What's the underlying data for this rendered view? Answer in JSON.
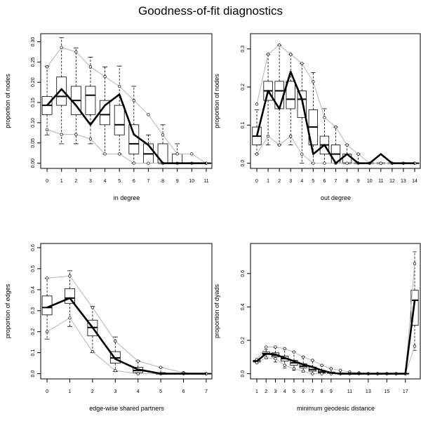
{
  "title": "Goodness-of-fit diagnostics",
  "colors": {
    "observed": "#000000",
    "bounds": "#b4b4b4",
    "box": "#000000"
  },
  "chart_data": [
    {
      "type": "box",
      "xlabel": "in degree",
      "ylabel": "proportion of nodes",
      "x": [
        0,
        1,
        2,
        3,
        4,
        5,
        6,
        7,
        8,
        9,
        10,
        11
      ],
      "x_tick_labels": [
        "0",
        "1",
        "2",
        "3",
        "4",
        "5",
        "6",
        "7",
        "8",
        "9",
        "10",
        "11"
      ],
      "ylim": [
        0,
        0.32
      ],
      "yticks": [
        0.0,
        0.05,
        0.1,
        0.15,
        0.2,
        0.25,
        0.3
      ],
      "ytick_labels": [
        "0.00",
        "0.05",
        "0.10",
        "0.15",
        "0.20",
        "0.25",
        "0.30"
      ],
      "observed": [
        0.143,
        0.183,
        0.143,
        0.095,
        0.143,
        0.17,
        0.071,
        0.045,
        0.0,
        0.0,
        0.0,
        0.0
      ],
      "box": [
        {
          "min": 0.07,
          "q1": 0.12,
          "med": 0.143,
          "q3": 0.165,
          "max": 0.24
        },
        {
          "min": 0.048,
          "q1": 0.143,
          "med": 0.165,
          "q3": 0.213,
          "max": 0.31
        },
        {
          "min": 0.048,
          "q1": 0.12,
          "med": 0.155,
          "q3": 0.19,
          "max": 0.285
        },
        {
          "min": 0.048,
          "q1": 0.12,
          "med": 0.168,
          "q3": 0.19,
          "max": 0.262
        },
        {
          "min": 0.023,
          "q1": 0.095,
          "med": 0.12,
          "q3": 0.155,
          "max": 0.238
        },
        {
          "min": 0.023,
          "q1": 0.07,
          "med": 0.095,
          "q3": 0.143,
          "max": 0.24
        },
        {
          "min": 0.0,
          "q1": 0.023,
          "med": 0.048,
          "q3": 0.095,
          "max": 0.19
        },
        {
          "min": 0.0,
          "q1": 0.0,
          "med": 0.023,
          "q3": 0.048,
          "max": 0.07
        },
        {
          "min": 0.0,
          "q1": 0.0,
          "med": 0.0,
          "q3": 0.048,
          "max": 0.095
        },
        {
          "min": 0.0,
          "q1": 0.0,
          "med": 0.0,
          "q3": 0.023,
          "max": 0.048
        },
        {
          "min": 0.0,
          "q1": 0.0,
          "med": 0.0,
          "q3": 0.0,
          "max": 0.0
        },
        {
          "min": 0.0,
          "q1": 0.0,
          "med": 0.0,
          "q3": 0.0,
          "max": 0.0
        }
      ],
      "upper": [
        0.238,
        0.286,
        0.275,
        0.238,
        0.214,
        0.19,
        0.155,
        0.12,
        0.07,
        0.023,
        0.023,
        0.0
      ],
      "lower": [
        0.083,
        0.071,
        0.071,
        0.06,
        0.023,
        0.023,
        0.0,
        0.0,
        0.0,
        0.0,
        0.0,
        0.0
      ]
    },
    {
      "type": "box",
      "xlabel": "out degree",
      "ylabel": "proportion of nodes",
      "x": [
        0,
        1,
        2,
        3,
        4,
        5,
        6,
        7,
        8,
        9,
        10,
        11,
        12,
        13,
        14
      ],
      "x_tick_labels": [
        "0",
        "1",
        "2",
        "3",
        "4",
        "5",
        "6",
        "7",
        "8",
        "9",
        "10",
        "11",
        "12",
        "13",
        "14"
      ],
      "ylim": [
        0,
        0.34
      ],
      "yticks": [
        0.0,
        0.1,
        0.2,
        0.3
      ],
      "ytick_labels": [
        "0.0",
        "0.1",
        "0.2",
        "0.3"
      ],
      "observed": [
        0.071,
        0.19,
        0.143,
        0.24,
        0.168,
        0.024,
        0.048,
        0.0,
        0.024,
        0.0,
        0.0,
        0.024,
        0.0,
        0.0,
        0.0
      ],
      "box": [
        {
          "min": 0.024,
          "q1": 0.048,
          "med": 0.071,
          "q3": 0.095,
          "max": 0.14
        },
        {
          "min": 0.048,
          "q1": 0.165,
          "med": 0.19,
          "q3": 0.215,
          "max": 0.285
        },
        {
          "min": 0.048,
          "q1": 0.143,
          "med": 0.19,
          "q3": 0.215,
          "max": 0.31
        },
        {
          "min": 0.048,
          "q1": 0.143,
          "med": 0.168,
          "q3": 0.215,
          "max": 0.285
        },
        {
          "min": 0.0,
          "q1": 0.12,
          "med": 0.168,
          "q3": 0.19,
          "max": 0.262
        },
        {
          "min": 0.0,
          "q1": 0.048,
          "med": 0.095,
          "q3": 0.14,
          "max": 0.238
        },
        {
          "min": 0.0,
          "q1": 0.024,
          "med": 0.048,
          "q3": 0.071,
          "max": 0.143
        },
        {
          "min": 0.0,
          "q1": 0.0,
          "med": 0.024,
          "q3": 0.048,
          "max": 0.095
        },
        {
          "min": 0.0,
          "q1": 0.0,
          "med": 0.0,
          "q3": 0.024,
          "max": 0.048
        },
        {
          "min": 0.0,
          "q1": 0.0,
          "med": 0.0,
          "q3": 0.0,
          "max": 0.024
        },
        {
          "min": 0.0,
          "q1": 0.0,
          "med": 0.0,
          "q3": 0.0,
          "max": 0.0
        },
        {
          "min": 0.0,
          "q1": 0.0,
          "med": 0.0,
          "q3": 0.0,
          "max": 0.0
        },
        {
          "min": 0.0,
          "q1": 0.0,
          "med": 0.0,
          "q3": 0.0,
          "max": 0.0
        },
        {
          "min": 0.0,
          "q1": 0.0,
          "med": 0.0,
          "q3": 0.0,
          "max": 0.0
        },
        {
          "min": 0.0,
          "q1": 0.0,
          "med": 0.0,
          "q3": 0.0,
          "max": 0.0
        }
      ],
      "upper": [
        0.155,
        0.286,
        0.31,
        0.286,
        0.262,
        0.214,
        0.12,
        0.095,
        0.048,
        0.024,
        0.0,
        0.0,
        0.0,
        0.0,
        0.0
      ],
      "lower": [
        0.024,
        0.071,
        0.048,
        0.071,
        0.024,
        0.0,
        0.0,
        0.0,
        0.0,
        0.0,
        0.0,
        0.0,
        0.0,
        0.0,
        0.0
      ]
    },
    {
      "type": "box",
      "xlabel": "edge-wise shared partners",
      "ylabel": "proportion of edges",
      "x": [
        0,
        1,
        2,
        3,
        4,
        5,
        6,
        7
      ],
      "x_tick_labels": [
        "0",
        "1",
        "2",
        "3",
        "4",
        "5",
        "6",
        "7"
      ],
      "ylim": [
        0,
        0.62
      ],
      "yticks": [
        0.0,
        0.1,
        0.2,
        0.3,
        0.4,
        0.5,
        0.6
      ],
      "ytick_labels": [
        "0.0",
        "0.1",
        "0.2",
        "0.3",
        "0.4",
        "0.5",
        "0.6"
      ],
      "observed": [
        0.315,
        0.36,
        0.22,
        0.07,
        0.02,
        0.0,
        0.0,
        0.0
      ],
      "box": [
        {
          "min": 0.165,
          "q1": 0.28,
          "med": 0.315,
          "q3": 0.37,
          "max": 0.455
        },
        {
          "min": 0.225,
          "q1": 0.335,
          "med": 0.36,
          "q3": 0.405,
          "max": 0.49
        },
        {
          "min": 0.1,
          "q1": 0.18,
          "med": 0.22,
          "q3": 0.255,
          "max": 0.32
        },
        {
          "min": 0.01,
          "q1": 0.05,
          "med": 0.075,
          "q3": 0.105,
          "max": 0.175
        },
        {
          "min": 0.0,
          "q1": 0.005,
          "med": 0.015,
          "q3": 0.03,
          "max": 0.06
        },
        {
          "min": 0.0,
          "q1": 0.0,
          "med": 0.0,
          "q3": 0.005,
          "max": 0.03
        },
        {
          "min": 0.0,
          "q1": 0.0,
          "med": 0.0,
          "q3": 0.0,
          "max": 0.005
        },
        {
          "min": 0.0,
          "q1": 0.0,
          "med": 0.0,
          "q3": 0.0,
          "max": 0.0
        }
      ],
      "upper": [
        0.455,
        0.465,
        0.315,
        0.155,
        0.06,
        0.03,
        0.005,
        0.0
      ],
      "lower": [
        0.2,
        0.265,
        0.105,
        0.015,
        0.0,
        0.0,
        0.0,
        0.0
      ]
    },
    {
      "type": "box",
      "xlabel": "minimum geodesic distance",
      "ylabel": "proportion of dyads",
      "x": [
        1,
        2,
        3,
        4,
        5,
        6,
        7,
        8,
        9,
        10,
        11,
        12,
        13,
        14,
        15,
        16,
        17,
        18
      ],
      "x_tick_labels": [
        "1",
        "2",
        "3",
        "4",
        "5",
        "6",
        "7",
        "8",
        "9",
        "11",
        "13",
        "15",
        "17"
      ],
      "x_tick_positions": [
        1,
        2,
        3,
        4,
        5,
        6,
        7,
        8,
        9,
        11,
        13,
        15,
        17
      ],
      "ylim": [
        0,
        0.78
      ],
      "yticks": [
        0.0,
        0.2,
        0.4,
        0.6
      ],
      "ytick_labels": [
        "0.0",
        "0.2",
        "0.4",
        "0.6"
      ],
      "observed": [
        0.075,
        0.12,
        0.115,
        0.095,
        0.075,
        0.055,
        0.04,
        0.02,
        0.005,
        0.0,
        0.0,
        0.0,
        0.0,
        0.0,
        0.0,
        0.0,
        0.0,
        0.44
      ],
      "box": [
        {
          "min": 0.065,
          "q1": 0.07,
          "med": 0.075,
          "q3": 0.08,
          "max": 0.085
        },
        {
          "min": 0.09,
          "q1": 0.115,
          "med": 0.12,
          "q3": 0.13,
          "max": 0.145
        },
        {
          "min": 0.07,
          "q1": 0.1,
          "med": 0.11,
          "q3": 0.125,
          "max": 0.155
        },
        {
          "min": 0.035,
          "q1": 0.075,
          "med": 0.09,
          "q3": 0.105,
          "max": 0.15
        },
        {
          "min": 0.02,
          "q1": 0.05,
          "med": 0.065,
          "q3": 0.08,
          "max": 0.13
        },
        {
          "min": 0.01,
          "q1": 0.035,
          "med": 0.045,
          "q3": 0.06,
          "max": 0.1
        },
        {
          "min": 0.0,
          "q1": 0.015,
          "med": 0.025,
          "q3": 0.04,
          "max": 0.08
        },
        {
          "min": 0.0,
          "q1": 0.005,
          "med": 0.01,
          "q3": 0.02,
          "max": 0.05
        },
        {
          "min": 0.0,
          "q1": 0.0,
          "med": 0.005,
          "q3": 0.01,
          "max": 0.03
        },
        {
          "min": 0.0,
          "q1": 0.0,
          "med": 0.0,
          "q3": 0.005,
          "max": 0.02
        },
        {
          "min": 0.0,
          "q1": 0.0,
          "med": 0.0,
          "q3": 0.0,
          "max": 0.01
        },
        {
          "min": 0.0,
          "q1": 0.0,
          "med": 0.0,
          "q3": 0.0,
          "max": 0.005
        },
        {
          "min": 0.0,
          "q1": 0.0,
          "med": 0.0,
          "q3": 0.0,
          "max": 0.0
        },
        {
          "min": 0.0,
          "q1": 0.0,
          "med": 0.0,
          "q3": 0.0,
          "max": 0.0
        },
        {
          "min": 0.0,
          "q1": 0.0,
          "med": 0.0,
          "q3": 0.0,
          "max": 0.0
        },
        {
          "min": 0.0,
          "q1": 0.0,
          "med": 0.0,
          "q3": 0.0,
          "max": 0.0
        },
        {
          "min": 0.0,
          "q1": 0.0,
          "med": 0.0,
          "q3": 0.0,
          "max": 0.0
        },
        {
          "min": 0.14,
          "q1": 0.29,
          "med": 0.44,
          "q3": 0.5,
          "max": 0.73
        }
      ],
      "upper": [
        0.085,
        0.16,
        0.16,
        0.15,
        0.13,
        0.1,
        0.08,
        0.05,
        0.03,
        0.02,
        0.01,
        0.005,
        0.0,
        0.0,
        0.0,
        0.0,
        0.0,
        0.66
      ],
      "lower": [
        0.065,
        0.095,
        0.09,
        0.05,
        0.03,
        0.015,
        0.0,
        0.0,
        0.0,
        0.0,
        0.0,
        0.0,
        0.0,
        0.0,
        0.0,
        0.0,
        0.0,
        0.165
      ]
    }
  ]
}
